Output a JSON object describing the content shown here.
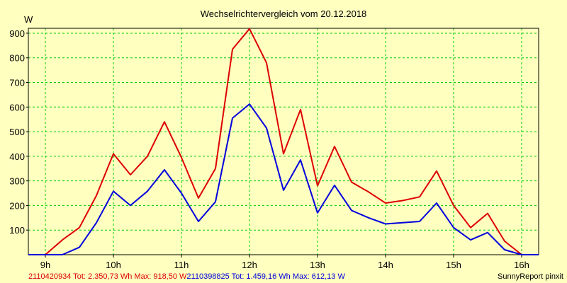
{
  "chart_data": {
    "type": "line",
    "title": "Wechselrichtervergleich vom 20.12.2018",
    "ylabel": "W",
    "xlabel": "",
    "xlim": [
      8.75,
      16.25
    ],
    "ylim": [
      0,
      920
    ],
    "grid": true,
    "x_ticks": [
      {
        "value": 9,
        "label": "9h"
      },
      {
        "value": 10,
        "label": "10h"
      },
      {
        "value": 11,
        "label": "11h"
      },
      {
        "value": 12,
        "label": "12h"
      },
      {
        "value": 13,
        "label": "13h"
      },
      {
        "value": 14,
        "label": "14h"
      },
      {
        "value": 15,
        "label": "15h"
      },
      {
        "value": 16,
        "label": "16h"
      }
    ],
    "y_ticks": [
      100,
      200,
      300,
      400,
      500,
      600,
      700,
      800,
      900
    ],
    "x": [
      8.75,
      9.0,
      9.25,
      9.5,
      9.75,
      10.0,
      10.25,
      10.5,
      10.75,
      11.0,
      11.25,
      11.5,
      11.75,
      12.0,
      12.25,
      12.5,
      12.75,
      13.0,
      13.25,
      13.5,
      13.75,
      14.0,
      14.25,
      14.5,
      14.75,
      15.0,
      15.25,
      15.5,
      15.75,
      16.0,
      16.25
    ],
    "series": [
      {
        "name": "2110420934 Tot: 2.350,73 Wh Max: 918,50 W",
        "color": "#dd0000",
        "values": [
          0,
          0,
          60,
          110,
          240,
          410,
          325,
          400,
          540,
          395,
          230,
          350,
          835,
          918,
          780,
          410,
          590,
          280,
          440,
          295,
          255,
          210,
          220,
          235,
          340,
          200,
          110,
          168,
          55,
          0,
          0
        ]
      },
      {
        "name": "2110398825 Tot: 1.459,16 Wh Max: 612,13 W",
        "color": "#0000dd",
        "values": [
          0,
          0,
          0,
          30,
          130,
          258,
          200,
          258,
          345,
          250,
          135,
          215,
          555,
          612,
          515,
          262,
          385,
          170,
          282,
          180,
          150,
          125,
          130,
          135,
          210,
          110,
          60,
          90,
          20,
          0,
          0
        ]
      }
    ]
  },
  "footer": {
    "credit": "SunnyReport pinxit"
  },
  "colors": {
    "background": "#ffffc0",
    "plot_background": "#ffffc0",
    "grid": "#00cc00"
  }
}
